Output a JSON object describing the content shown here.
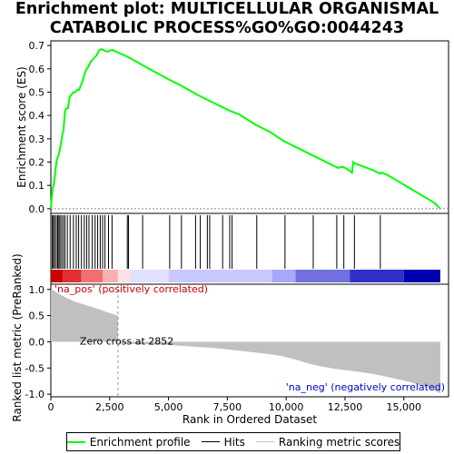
{
  "title_line1": "Enrichment plot: MULTICELLULAR ORGANISMAL",
  "title_line2": "CATABOLIC PROCESS%GO%GO:0044243",
  "chart_data": {
    "type": "line",
    "top_panel": {
      "ylabel": "Enrichment score (ES)",
      "ylim": [
        -0.02,
        0.72
      ],
      "yticks": [
        "0.0",
        "0.1",
        "0.2",
        "0.3",
        "0.4",
        "0.5",
        "0.6",
        "0.7"
      ],
      "ytick_values": [
        0.0,
        0.1,
        0.2,
        0.3,
        0.4,
        0.5,
        0.6,
        0.7
      ],
      "series_name": "Enrichment profile",
      "color": "#00ff00",
      "x": [
        0,
        40,
        80,
        120,
        160,
        200,
        240,
        280,
        330,
        380,
        430,
        480,
        540,
        600,
        660,
        720,
        800,
        880,
        960,
        1040,
        1120,
        1200,
        1280,
        1360,
        1440,
        1520,
        1600,
        1690,
        1780,
        1870,
        1960,
        2050,
        2150,
        2250,
        2350,
        2450,
        2550,
        2650,
        2750,
        2852,
        3300,
        4000,
        5000,
        5100,
        5600,
        6200,
        6700,
        7300,
        7600,
        8000,
        8700,
        9300,
        9900,
        10300,
        10700,
        11100,
        11500,
        11800,
        12100,
        12200,
        12400,
        12600,
        12800,
        12850,
        12900,
        13300,
        13700,
        14000,
        14050,
        14300,
        14800,
        15300,
        15800,
        16300,
        16550
      ],
      "y": [
        0.0,
        0.05,
        0.09,
        0.1,
        0.13,
        0.17,
        0.2,
        0.22,
        0.23,
        0.25,
        0.28,
        0.31,
        0.34,
        0.42,
        0.43,
        0.43,
        0.48,
        0.49,
        0.5,
        0.5,
        0.51,
        0.51,
        0.53,
        0.55,
        0.58,
        0.6,
        0.61,
        0.63,
        0.64,
        0.65,
        0.66,
        0.68,
        0.685,
        0.68,
        0.675,
        0.675,
        0.68,
        0.68,
        0.675,
        0.67,
        0.65,
        0.61,
        0.555,
        0.55,
        0.525,
        0.49,
        0.465,
        0.435,
        0.42,
        0.405,
        0.36,
        0.33,
        0.29,
        0.27,
        0.25,
        0.23,
        0.21,
        0.195,
        0.18,
        0.175,
        0.18,
        0.17,
        0.155,
        0.2,
        0.195,
        0.18,
        0.165,
        0.15,
        0.155,
        0.145,
        0.115,
        0.085,
        0.055,
        0.025,
        0.0
      ]
    },
    "hits": [
      60,
      110,
      160,
      230,
      290,
      340,
      390,
      460,
      530,
      600,
      700,
      820,
      960,
      1080,
      1180,
      1300,
      1420,
      1520,
      1620,
      1760,
      1880,
      1990,
      2100,
      2200,
      2300,
      2450,
      2600,
      3250,
      3300,
      3900,
      5050,
      5550,
      6150,
      6350,
      6650,
      6750,
      7300,
      7600,
      7700,
      8750,
      9950,
      11150,
      12150,
      12450,
      12900,
      14000
    ],
    "x_axis": {
      "xlabel": "Rank in Ordered Dataset",
      "xlim": [
        0,
        16900
      ],
      "xticks": [
        "0",
        "2,500",
        "5,000",
        "7,500",
        "10,000",
        "12,500",
        "15,000"
      ],
      "xtick_values": [
        0,
        2500,
        5000,
        7500,
        10000,
        12500,
        15000
      ]
    },
    "bottom_panel": {
      "ylabel": "Ranked list metric (PreRanked)",
      "ylim": [
        -1.05,
        1.1
      ],
      "yticks": [
        "1.0",
        "0.5",
        "0.0",
        "-0.5",
        "-1.0"
      ],
      "ytick_values": [
        1.0,
        0.5,
        0.0,
        -0.5,
        -1.0
      ],
      "metric_x": [
        0,
        100,
        300,
        600,
        1000,
        1500,
        2000,
        2500,
        2852,
        2853,
        3500,
        5000,
        6000,
        7000,
        8000,
        9000,
        9800,
        10500,
        11000,
        11500,
        12000,
        12500,
        13000,
        13500,
        14000,
        14500,
        15000,
        15500,
        16000,
        16300,
        16550
      ],
      "metric_y": [
        1.0,
        0.98,
        0.93,
        0.85,
        0.77,
        0.7,
        0.63,
        0.55,
        0.5,
        -0.02,
        -0.04,
        -0.06,
        -0.09,
        -0.12,
        -0.17,
        -0.22,
        -0.27,
        -0.35,
        -0.42,
        -0.47,
        -0.51,
        -0.54,
        -0.57,
        -0.6,
        -0.64,
        -0.69,
        -0.74,
        -0.8,
        -0.87,
        -0.93,
        -0.98
      ],
      "zero_cross_label": "Zero cross at 2852",
      "zero_cross": 2852,
      "pos_label": "'na_pos' (positively correlated)",
      "neg_label": "'na_neg' (negatively correlated)",
      "pos_color": "#cc0000",
      "neg_color": "#0000cc",
      "fill_color": "#c0c0c0"
    },
    "heatmap_colors": [
      "#cc0000",
      "#e03030",
      "#f07070",
      "#f8b0b0",
      "#fde0e0",
      "#e0e0ff",
      "#c8c8ff",
      "#a8a8f8",
      "#7070e0",
      "#3030c8",
      "#0000b0"
    ],
    "heatmap_breaks": [
      0,
      500,
      1300,
      2200,
      2852,
      3400,
      5000,
      9400,
      10400,
      12700,
      15000,
      16550
    ]
  },
  "legend": {
    "items": [
      {
        "label": "Enrichment profile",
        "color": "#00ff00",
        "style": "solid"
      },
      {
        "label": "Hits",
        "color": "#000000",
        "style": "solid"
      },
      {
        "label": "Ranking metric scores",
        "color": "#c0c0c0",
        "style": "solid"
      }
    ]
  }
}
